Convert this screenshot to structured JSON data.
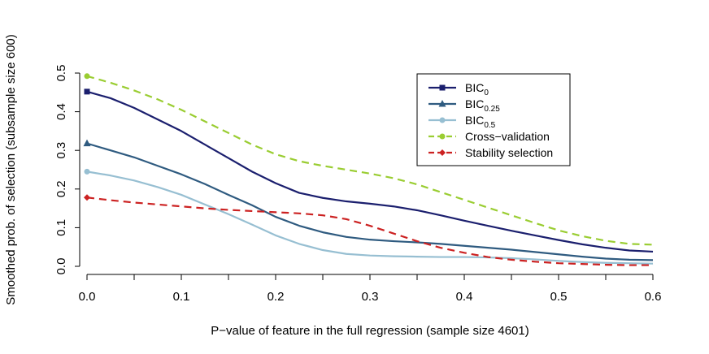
{
  "chart_data": {
    "type": "line",
    "title": "",
    "xlabel": "P−value of feature in the full regression (sample size 4601)",
    "ylabel": "Smoothed prob. of selection (subsample size 600)",
    "xlim": [
      0.0,
      0.6
    ],
    "ylim": [
      0.0,
      0.5
    ],
    "xticks": [
      0.0,
      0.05,
      0.1,
      0.15,
      0.2,
      0.25,
      0.3,
      0.35,
      0.4,
      0.45,
      0.5,
      0.55,
      0.6
    ],
    "xtick_labels": [
      "0.0",
      "",
      "0.1",
      "",
      "0.2",
      "",
      "0.3",
      "",
      "0.4",
      "",
      "0.5",
      "",
      "0.6"
    ],
    "yticks": [
      0.0,
      0.1,
      0.2,
      0.3,
      0.4,
      0.5
    ],
    "ytick_labels": [
      "0.0",
      "0.1",
      "0.2",
      "0.3",
      "0.4",
      "0.5"
    ],
    "grid": false,
    "legend_position": "top-right",
    "x": [
      0.0,
      0.025,
      0.05,
      0.075,
      0.1,
      0.125,
      0.15,
      0.175,
      0.2,
      0.225,
      0.25,
      0.275,
      0.3,
      0.325,
      0.35,
      0.375,
      0.4,
      0.425,
      0.45,
      0.475,
      0.5,
      0.525,
      0.55,
      0.575,
      0.6
    ],
    "series": [
      {
        "name": "BIC",
        "subscript": "0",
        "color": "#1b1f6e",
        "dash": "solid",
        "marker": "square",
        "values": [
          0.452,
          0.435,
          0.41,
          0.38,
          0.35,
          0.315,
          0.28,
          0.245,
          0.215,
          0.19,
          0.177,
          0.168,
          0.162,
          0.155,
          0.145,
          0.132,
          0.118,
          0.105,
          0.092,
          0.08,
          0.068,
          0.057,
          0.048,
          0.041,
          0.038
        ]
      },
      {
        "name": "BIC",
        "subscript": "0.25",
        "color": "#2f5b80",
        "dash": "solid",
        "marker": "triangle",
        "values": [
          0.318,
          0.3,
          0.282,
          0.26,
          0.238,
          0.213,
          0.185,
          0.158,
          0.128,
          0.105,
          0.088,
          0.076,
          0.069,
          0.065,
          0.062,
          0.058,
          0.053,
          0.048,
          0.043,
          0.037,
          0.031,
          0.025,
          0.02,
          0.017,
          0.016
        ]
      },
      {
        "name": "BIC",
        "subscript": "0.5",
        "color": "#97bfd2",
        "dash": "solid",
        "marker": "circle",
        "values": [
          0.245,
          0.235,
          0.222,
          0.205,
          0.185,
          0.16,
          0.135,
          0.108,
          0.08,
          0.058,
          0.042,
          0.032,
          0.028,
          0.026,
          0.025,
          0.024,
          0.024,
          0.023,
          0.021,
          0.018,
          0.014,
          0.011,
          0.009,
          0.008,
          0.007
        ]
      },
      {
        "name": "Cross−validation",
        "subscript": "",
        "color": "#9acd32",
        "dash": "dashed",
        "marker": "circle",
        "values": [
          0.492,
          0.475,
          0.455,
          0.432,
          0.405,
          0.375,
          0.345,
          0.315,
          0.29,
          0.272,
          0.26,
          0.25,
          0.24,
          0.228,
          0.212,
          0.192,
          0.172,
          0.152,
          0.132,
          0.112,
          0.093,
          0.078,
          0.066,
          0.058,
          0.056
        ]
      },
      {
        "name": "Stability selection",
        "subscript": "",
        "color": "#cc2222",
        "dash": "dashed",
        "marker": "diamond",
        "values": [
          0.178,
          0.171,
          0.165,
          0.16,
          0.155,
          0.15,
          0.146,
          0.143,
          0.14,
          0.137,
          0.132,
          0.122,
          0.105,
          0.085,
          0.065,
          0.048,
          0.035,
          0.024,
          0.017,
          0.012,
          0.008,
          0.006,
          0.004,
          0.003,
          0.003
        ]
      }
    ]
  }
}
